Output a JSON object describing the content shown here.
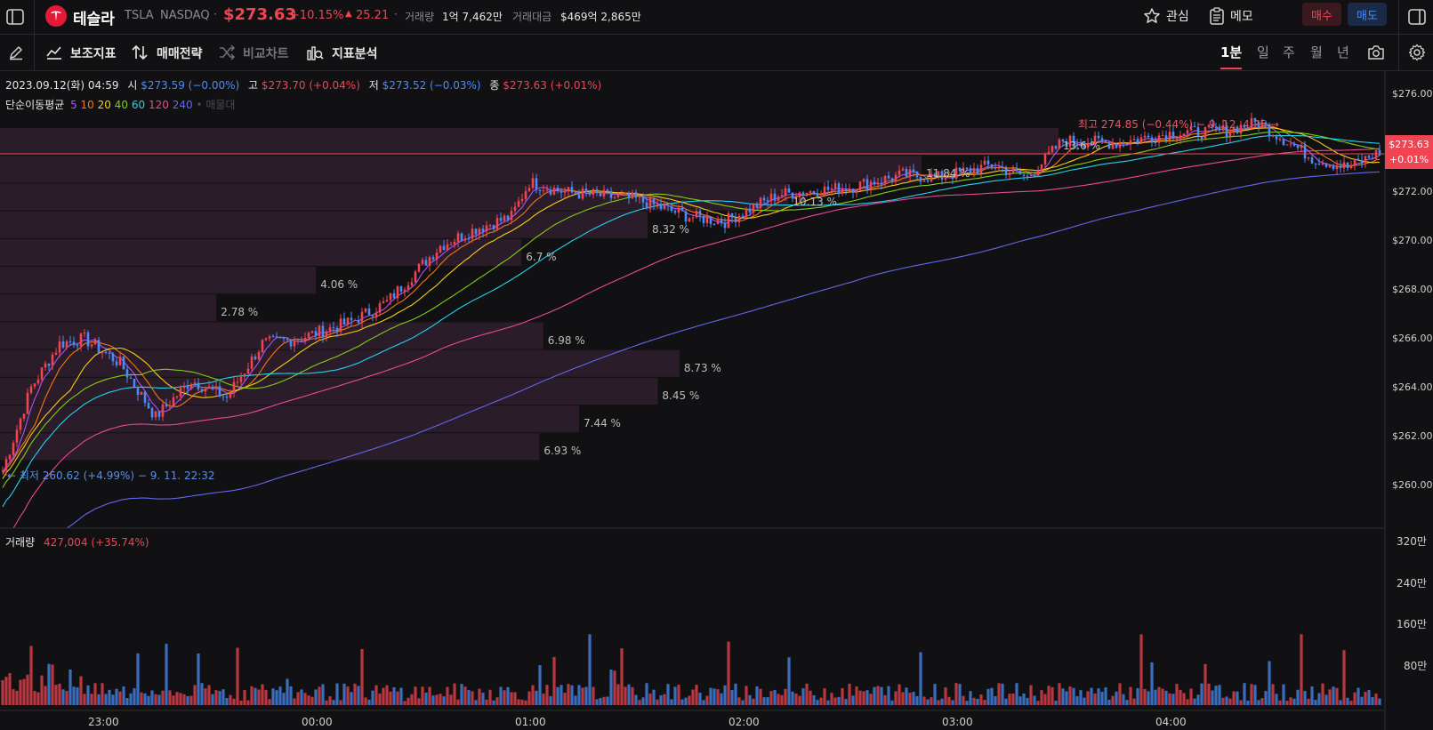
{
  "header": {
    "name": "테슬라",
    "ticker": "TSLA",
    "exchange": "NASDAQ",
    "price": "$273.63",
    "change_pct": "+10.15%",
    "change_abs": "25.21",
    "volume_label": "거래량",
    "volume_value": "1억 7,462만",
    "amount_label": "거래대금",
    "amount_value": "$469억 2,865만",
    "watch_label": "관심",
    "memo_label": "메모",
    "buy_label": "매수",
    "sell_label": "매도"
  },
  "toolbar": {
    "indicators": "보조지표",
    "strategy": "매매전략",
    "compare": "비교차트",
    "analysis": "지표분석",
    "periods": [
      "1분",
      "일",
      "주",
      "월",
      "년"
    ],
    "active_period": "1분"
  },
  "ohlc": {
    "date": "2023.09.12(화) 04:59",
    "open_label": "시",
    "open": "$273.59 (−0.00%)",
    "high_label": "고",
    "high": "$273.70 (+0.04%)",
    "low_label": "저",
    "low": "$273.52 (−0.03%)",
    "close_label": "종",
    "close": "$273.63 (+0.01%)"
  },
  "ma_legend": {
    "label": "단순이동평균",
    "periods": [
      "5",
      "10",
      "20",
      "40",
      "60",
      "120",
      "240"
    ],
    "colors": [
      "#a855f7",
      "#f97316",
      "#facc15",
      "#84cc16",
      "#22d3ee",
      "#ec4899",
      "#6366f1"
    ],
    "extra": "• 매물대"
  },
  "annotations": {
    "high": "최고 274.85 (−0.44%) − 9. 12. 4:25 →",
    "low": "← 최저 260.62 (+4.99%) − 9. 11. 22:32"
  },
  "current_price_tag": {
    "price": "$273.63",
    "change": "+0.01%"
  },
  "volume_header": {
    "label": "거래량",
    "value": "427,004 (+35.74%)"
  },
  "colors": {
    "up": "#f04452",
    "down": "#4a8cf7",
    "background": "#111113",
    "profile": "#2a1c28"
  },
  "chart_data": [
    {
      "type": "candlestick",
      "title": "",
      "y_ticks": [
        "$276.00",
        "$274.00",
        "$272.00",
        "$270.00",
        "$268.00",
        "$266.00",
        "$264.00",
        "$262.00",
        "$260.00"
      ],
      "ylim": [
        258.5,
        276.5
      ],
      "x_ticks": [
        "23:00",
        "00:00",
        "01:00",
        "02:00",
        "03:00",
        "04:00"
      ],
      "price_path": [
        {
          "t": "22:32",
          "p": 260.62
        },
        {
          "t": "22:40",
          "p": 264.0
        },
        {
          "t": "22:48",
          "p": 265.8
        },
        {
          "t": "22:55",
          "p": 266.0
        },
        {
          "t": "23:05",
          "p": 265.0
        },
        {
          "t": "23:15",
          "p": 262.8
        },
        {
          "t": "23:25",
          "p": 264.3
        },
        {
          "t": "23:35",
          "p": 263.6
        },
        {
          "t": "23:45",
          "p": 265.8
        },
        {
          "t": "23:55",
          "p": 266.0
        },
        {
          "t": "00:10",
          "p": 266.7
        },
        {
          "t": "00:20",
          "p": 267.5
        },
        {
          "t": "00:35",
          "p": 269.8
        },
        {
          "t": "00:45",
          "p": 270.5
        },
        {
          "t": "00:55",
          "p": 271.0
        },
        {
          "t": "01:00",
          "p": 272.4
        },
        {
          "t": "01:10",
          "p": 272.0
        },
        {
          "t": "01:30",
          "p": 271.7
        },
        {
          "t": "01:45",
          "p": 271.0
        },
        {
          "t": "01:55",
          "p": 270.8
        },
        {
          "t": "02:10",
          "p": 271.9
        },
        {
          "t": "02:30",
          "p": 272.2
        },
        {
          "t": "02:45",
          "p": 272.7
        },
        {
          "t": "02:55",
          "p": 272.6
        },
        {
          "t": "03:10",
          "p": 273.1
        },
        {
          "t": "03:20",
          "p": 272.6
        },
        {
          "t": "03:30",
          "p": 274.1
        },
        {
          "t": "03:45",
          "p": 274.0
        },
        {
          "t": "04:00",
          "p": 274.4
        },
        {
          "t": "04:15",
          "p": 274.5
        },
        {
          "t": "04:25",
          "p": 274.85
        },
        {
          "t": "04:40",
          "p": 273.4
        },
        {
          "t": "04:50",
          "p": 273.0
        },
        {
          "t": "04:59",
          "p": 273.63
        }
      ],
      "volume_profile": [
        {
          "label": "13.6 %",
          "value": 13.6
        },
        {
          "label": "11.84 %",
          "value": 11.84
        },
        {
          "label": "10.13 %",
          "value": 10.13
        },
        {
          "label": "8.32 %",
          "value": 8.32
        },
        {
          "label": "6.7 %",
          "value": 6.7
        },
        {
          "label": "4.06 %",
          "value": 4.06
        },
        {
          "label": "2.78 %",
          "value": 2.78
        },
        {
          "label": "6.98 %",
          "value": 6.98
        },
        {
          "label": "8.73 %",
          "value": 8.73
        },
        {
          "label": "8.45 %",
          "value": 8.45
        },
        {
          "label": "7.44 %",
          "value": 7.44
        },
        {
          "label": "6.93 %",
          "value": 6.93
        }
      ]
    },
    {
      "type": "bar",
      "title": "",
      "y_ticks": [
        "320만",
        "240만",
        "160만",
        "80만"
      ],
      "ylim": [
        0,
        320
      ]
    }
  ]
}
